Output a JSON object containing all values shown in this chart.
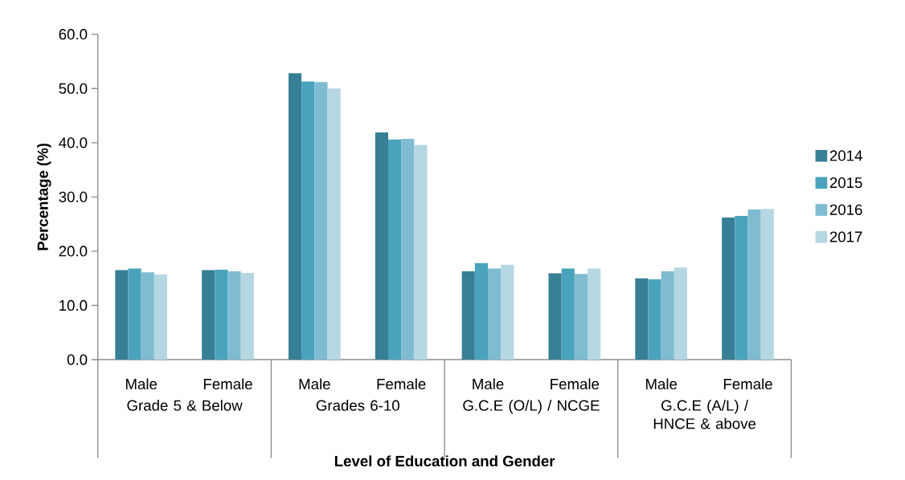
{
  "chart_data": {
    "type": "bar",
    "xlabel": "Level of Education and Gender",
    "ylabel": "Percentage (%)",
    "categories": [
      "Male",
      "Female",
      "Male",
      "Female",
      "Male",
      "Female",
      "Male",
      "Female"
    ],
    "annotations": [
      "Grade 5 & Below",
      "Grades 6-10",
      "G.C.E (O/L) / NCGE",
      "G.C.E (A/L) / HNCE & above"
    ],
    "series": [
      {
        "name": "2014",
        "color": "#367f95",
        "values": [
          16.5,
          16.5,
          52.8,
          41.9,
          16.3,
          15.9,
          15.0,
          26.2
        ]
      },
      {
        "name": "2015",
        "color": "#4aa3bd",
        "values": [
          16.8,
          16.6,
          51.3,
          40.6,
          17.8,
          16.8,
          14.8,
          26.5
        ]
      },
      {
        "name": "2016",
        "color": "#7fbcd2",
        "values": [
          16.1,
          16.3,
          51.2,
          40.7,
          16.8,
          15.8,
          16.3,
          27.7
        ]
      },
      {
        "name": "2017",
        "color": "#b5d7e3",
        "values": [
          15.7,
          16.0,
          50.0,
          39.6,
          17.5,
          16.8,
          17.0,
          27.8
        ]
      }
    ],
    "ylim": [
      0,
      60
    ],
    "yticks": [
      {
        "value": 0,
        "label": "0.0"
      },
      {
        "value": 10,
        "label": "10.0"
      },
      {
        "value": 20,
        "label": "20.0"
      },
      {
        "value": 30,
        "label": "30.0"
      },
      {
        "value": 40,
        "label": "40.0"
      },
      {
        "value": 50,
        "label": "50.0"
      },
      {
        "value": 60,
        "label": "60.0"
      }
    ],
    "grid": false,
    "legend": "right"
  }
}
